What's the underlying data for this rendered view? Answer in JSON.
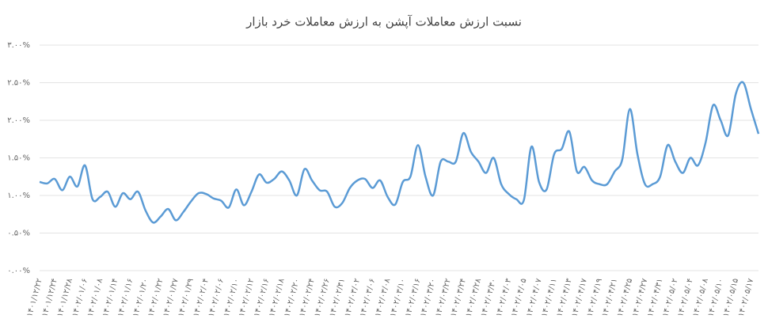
{
  "chart_data": {
    "type": "line",
    "title": "نسبت ارزش معاملات آپشن به ارزش معاملات خرد بازار",
    "categories": [
      "۱۴۰۱/۱۲/۲۲",
      null,
      "۱۴۰۱/۱۲/۲۴",
      null,
      "۱۴۰۱/۱۲/۲۸",
      null,
      "۱۴۰۲/۰۱/۰۶",
      null,
      "۱۴۰۲/۰۱/۰۸",
      null,
      "۱۴۰۲/۰۱/۱۴",
      null,
      "۱۴۰۲/۰۱/۱۶",
      null,
      "۱۴۰۲/۰۱/۲۰",
      null,
      "۱۴۰۲/۰۱/۲۲",
      null,
      "۱۴۰۲/۰۱/۲۷",
      null,
      "۱۴۰۲/۰۱/۲۹",
      null,
      "۱۴۰۲/۰۲/۰۴",
      null,
      "۱۴۰۲/۰۲/۰۶",
      null,
      "۱۴۰۲/۰۲/۱۰",
      null,
      "۱۴۰۲/۰۲/۱۲",
      null,
      "۱۴۰۲/۰۲/۱۶",
      null,
      "۱۴۰۲/۰۲/۱۸",
      null,
      "۱۴۰۲/۰۲/۲۰",
      null,
      "۱۴۰۲/۰۲/۲۴",
      null,
      "۱۴۰۲/۰۲/۲۶",
      null,
      "۱۴۰۲/۰۲/۳۱",
      null,
      "۱۴۰۲/۰۳/۰۲",
      null,
      "۱۴۰۲/۰۳/۰۶",
      null,
      "۱۴۰۲/۰۳/۰۸",
      null,
      "۱۴۰۲/۰۳/۱۰",
      null,
      "۱۴۰۲/۰۳/۱۶",
      null,
      "۱۴۰۲/۰۳/۲۰",
      null,
      "۱۴۰۲/۰۳/۲۲",
      null,
      "۱۴۰۲/۰۳/۲۴",
      null,
      "۱۴۰۲/۰۳/۲۸",
      null,
      "۱۴۰۲/۰۳/۳۰",
      null,
      "۱۴۰۲/۰۴/۰۳",
      null,
      "۱۴۰۲/۰۴/۰۵",
      null,
      "۱۴۰۲/۰۴/۰۷",
      null,
      "۱۴۰۲/۰۴/۱۱",
      null,
      "۱۴۰۲/۰۴/۱۳",
      null,
      "۱۴۰۲/۰۴/۱۷",
      null,
      "۱۴۰۲/۰۴/۱۹",
      null,
      "۱۴۰۲/۰۴/۲۱",
      null,
      "۱۴۰۲/۰۴/۲۵",
      null,
      "۱۴۰۲/۰۴/۲۷",
      null,
      "۱۴۰۲/۰۴/۳۱",
      null,
      "۱۴۰۲/۰۵/۰۲",
      null,
      "۱۴۰۲/۰۵/۰۴",
      null,
      "۱۴۰۲/۰۵/۰۸",
      null,
      "۱۴۰۲/۰۵/۱۰",
      null,
      "۱۴۰۲/۰۵/۱۵",
      null,
      "۱۴۰۲/۰۵/۱۷",
      null
    ],
    "values": [
      1.18,
      1.16,
      1.22,
      1.07,
      1.25,
      1.12,
      1.4,
      0.95,
      0.98,
      1.05,
      0.85,
      1.03,
      0.95,
      1.05,
      0.8,
      0.64,
      0.72,
      0.82,
      0.67,
      0.78,
      0.92,
      1.03,
      1.02,
      0.96,
      0.93,
      0.84,
      1.08,
      0.87,
      1.05,
      1.28,
      1.17,
      1.22,
      1.32,
      1.2,
      1.0,
      1.35,
      1.2,
      1.07,
      1.05,
      0.85,
      0.9,
      1.1,
      1.2,
      1.22,
      1.1,
      1.2,
      0.98,
      0.88,
      1.18,
      1.25,
      1.67,
      1.25,
      1.0,
      1.45,
      1.45,
      1.45,
      1.83,
      1.58,
      1.45,
      1.3,
      1.5,
      1.15,
      1.02,
      0.95,
      0.94,
      1.65,
      1.18,
      1.08,
      1.55,
      1.62,
      1.85,
      1.32,
      1.38,
      1.2,
      1.15,
      1.15,
      1.32,
      1.48,
      2.15,
      1.55,
      1.15,
      1.15,
      1.25,
      1.67,
      1.45,
      1.3,
      1.5,
      1.4,
      1.7,
      2.2,
      2.0,
      1.8,
      2.35,
      2.5,
      2.15,
      1.82
    ],
    "color": "#5b9bd5",
    "ylim": [
      0,
      3
    ],
    "yticks": [
      {
        "value": 0,
        "label": "۰.۰۰%"
      },
      {
        "value": 0.5,
        "label": "۰.۵۰%"
      },
      {
        "value": 1,
        "label": "۱.۰۰%"
      },
      {
        "value": 1.5,
        "label": "۱.۵۰%"
      },
      {
        "value": 2,
        "label": "۲.۰۰%"
      },
      {
        "value": 2.5,
        "label": "۲.۵۰%"
      },
      {
        "value": 3,
        "label": "۳.۰۰%"
      }
    ],
    "grid": true
  }
}
